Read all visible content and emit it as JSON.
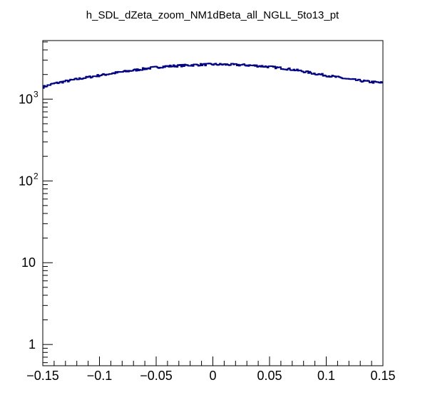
{
  "chart_data": {
    "type": "line",
    "title": "h_SDL_dZeta_zoom_NM1dBeta_all_NGLL_5to13_pt",
    "xlabel": "",
    "ylabel": "",
    "xlim": [
      -0.15,
      0.15
    ],
    "ylim": [
      0.55,
      5200
    ],
    "y_scale": "log",
    "grid": false,
    "x_ticks": [
      {
        "v": -0.15,
        "label": "−0.15"
      },
      {
        "v": -0.1,
        "label": "−0.1"
      },
      {
        "v": -0.05,
        "label": "−0.05"
      },
      {
        "v": 0,
        "label": "0"
      },
      {
        "v": 0.05,
        "label": "0.05"
      },
      {
        "v": 0.1,
        "label": "0.1"
      },
      {
        "v": 0.15,
        "label": "0.15"
      }
    ],
    "y_ticks": [
      {
        "v": 1,
        "base": "1",
        "exp": ""
      },
      {
        "v": 10,
        "base": "10",
        "exp": ""
      },
      {
        "v": 100,
        "base": "10",
        "exp": "2"
      },
      {
        "v": 1000,
        "base": "10",
        "exp": "3"
      }
    ],
    "series": [
      {
        "name": "",
        "color": "#000080",
        "style": "step",
        "x": [
          -0.15,
          -0.14,
          -0.13,
          -0.12,
          -0.11,
          -0.1,
          -0.09,
          -0.08,
          -0.07,
          -0.06,
          -0.05,
          -0.04,
          -0.03,
          -0.02,
          -0.01,
          0,
          0.01,
          0.02,
          0.03,
          0.04,
          0.05,
          0.06,
          0.07,
          0.08,
          0.09,
          0.1,
          0.11,
          0.12,
          0.13,
          0.14,
          0.15
        ],
        "y": [
          1400,
          1550,
          1650,
          1750,
          1850,
          1950,
          2050,
          2150,
          2250,
          2350,
          2450,
          2520,
          2560,
          2600,
          2640,
          2660,
          2650,
          2630,
          2600,
          2550,
          2480,
          2400,
          2300,
          2180,
          2050,
          1950,
          1850,
          1750,
          1680,
          1620,
          1580
        ]
      }
    ]
  }
}
